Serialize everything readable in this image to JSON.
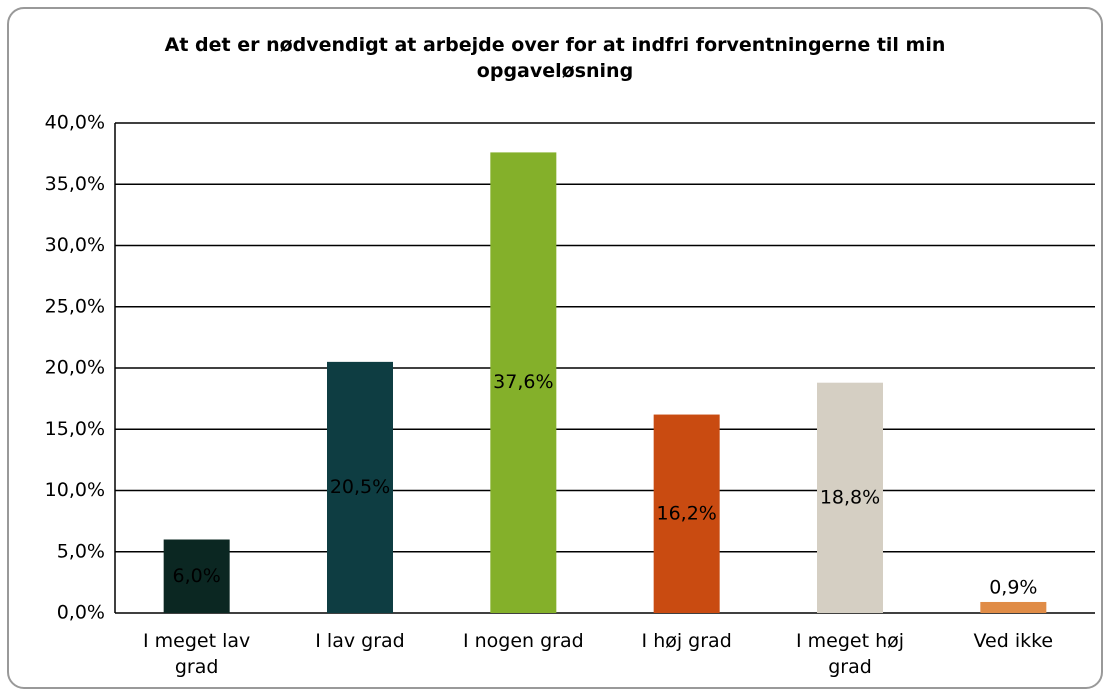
{
  "chart_data": {
    "type": "bar",
    "title": "At det er nødvendigt at arbejde over for at indfri forventningerne til min opgaveløsning",
    "categories": [
      "I meget lav grad",
      "I lav grad",
      "I nogen grad",
      "I høj grad",
      "I meget høj grad",
      "Ved ikke"
    ],
    "values": [
      6.0,
      20.5,
      37.6,
      16.2,
      18.8,
      0.9
    ],
    "value_labels": [
      "6,0%",
      "20,5%",
      "37,6%",
      "16,2%",
      "18,8%",
      "0,9%"
    ],
    "colors": [
      "#0b2722",
      "#0e3d42",
      "#84b02a",
      "#c94b11",
      "#d5cfc3",
      "#e08c47"
    ],
    "ylim": [
      0,
      40
    ],
    "yticks": [
      {
        "value": 0,
        "label": "0,0%"
      },
      {
        "value": 5,
        "label": "5,0%"
      },
      {
        "value": 10,
        "label": "10,0%"
      },
      {
        "value": 15,
        "label": "15,0%"
      },
      {
        "value": 20,
        "label": "20,0%"
      },
      {
        "value": 25,
        "label": "25,0%"
      },
      {
        "value": 30,
        "label": "30,0%"
      },
      {
        "value": 35,
        "label": "35,0%"
      },
      {
        "value": 40,
        "label": "40,0%"
      }
    ],
    "grid": true
  }
}
